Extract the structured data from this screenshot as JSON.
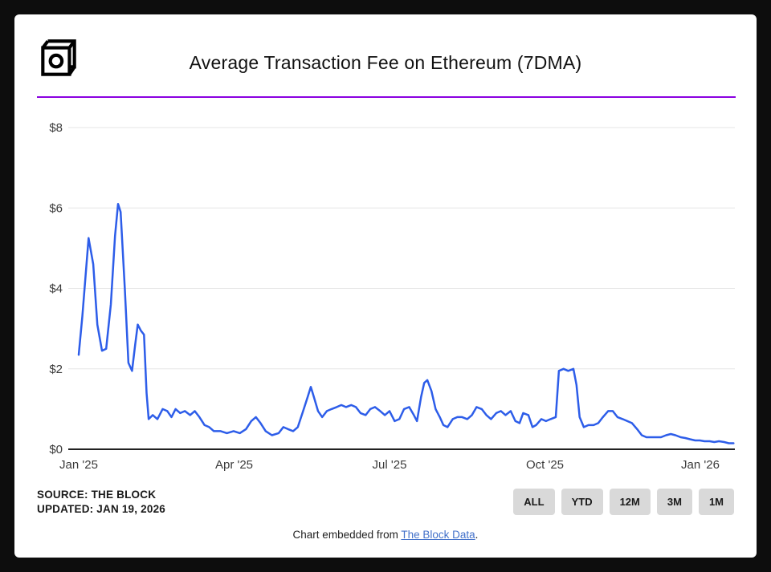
{
  "header": {
    "title": "Average Transaction Fee on Ethereum (7DMA)"
  },
  "colors": {
    "page_bg": "#0d0d0d",
    "card_bg": "#ffffff",
    "accent_divider": "#8a00e0",
    "line": "#2d5de9",
    "grid": "#e6e6e6",
    "axis": "#222222",
    "tick_text": "#3a3a3a",
    "button_bg": "#d9d9d9",
    "link": "#4472ca"
  },
  "chart_data": {
    "type": "line",
    "title": "Average Transaction Fee on Ethereum (7DMA)",
    "series_name": "Average transaction fee (USD, 7-day moving average)",
    "xlabel": "",
    "ylabel": "",
    "x_unit": "months since Jan 2025",
    "xlim": [
      0,
      12.67
    ],
    "ylim": [
      0,
      8
    ],
    "grid": true,
    "legend": false,
    "y_ticks": [
      {
        "label": "$0",
        "value": 0
      },
      {
        "label": "$2",
        "value": 2
      },
      {
        "label": "$4",
        "value": 4
      },
      {
        "label": "$6",
        "value": 6
      },
      {
        "label": "$8",
        "value": 8
      }
    ],
    "x_ticks": [
      {
        "label": "Jan '25",
        "value": 0
      },
      {
        "label": "Apr '25",
        "value": 3
      },
      {
        "label": "Jul '25",
        "value": 6
      },
      {
        "label": "Oct '25",
        "value": 9
      },
      {
        "label": "Jan '26",
        "value": 12
      }
    ],
    "points": [
      [
        0,
        2.35
      ],
      [
        0.07,
        3.3
      ],
      [
        0.19,
        5.25
      ],
      [
        0.28,
        4.6
      ],
      [
        0.36,
        3.1
      ],
      [
        0.45,
        2.45
      ],
      [
        0.53,
        2.5
      ],
      [
        0.62,
        3.6
      ],
      [
        0.7,
        5.3
      ],
      [
        0.76,
        6.1
      ],
      [
        0.81,
        5.9
      ],
      [
        0.89,
        4.0
      ],
      [
        0.96,
        2.15
      ],
      [
        1.03,
        1.95
      ],
      [
        1.09,
        2.6
      ],
      [
        1.14,
        3.1
      ],
      [
        1.2,
        2.95
      ],
      [
        1.26,
        2.85
      ],
      [
        1.31,
        1.4
      ],
      [
        1.35,
        0.75
      ],
      [
        1.43,
        0.85
      ],
      [
        1.52,
        0.75
      ],
      [
        1.62,
        1.0
      ],
      [
        1.71,
        0.95
      ],
      [
        1.79,
        0.8
      ],
      [
        1.87,
        1.0
      ],
      [
        1.96,
        0.9
      ],
      [
        2.05,
        0.95
      ],
      [
        2.15,
        0.85
      ],
      [
        2.24,
        0.95
      ],
      [
        2.33,
        0.8
      ],
      [
        2.43,
        0.6
      ],
      [
        2.52,
        0.55
      ],
      [
        2.61,
        0.45
      ],
      [
        2.74,
        0.45
      ],
      [
        2.86,
        0.4
      ],
      [
        2.99,
        0.45
      ],
      [
        3.11,
        0.4
      ],
      [
        3.23,
        0.5
      ],
      [
        3.33,
        0.7
      ],
      [
        3.42,
        0.8
      ],
      [
        3.51,
        0.65
      ],
      [
        3.61,
        0.45
      ],
      [
        3.73,
        0.35
      ],
      [
        3.86,
        0.4
      ],
      [
        3.95,
        0.55
      ],
      [
        4.04,
        0.5
      ],
      [
        4.14,
        0.45
      ],
      [
        4.23,
        0.55
      ],
      [
        4.32,
        0.9
      ],
      [
        4.42,
        1.3
      ],
      [
        4.48,
        1.55
      ],
      [
        4.54,
        1.3
      ],
      [
        4.62,
        0.95
      ],
      [
        4.7,
        0.8
      ],
      [
        4.79,
        0.95
      ],
      [
        4.88,
        1.0
      ],
      [
        4.98,
        1.05
      ],
      [
        5.07,
        1.1
      ],
      [
        5.16,
        1.05
      ],
      [
        5.26,
        1.1
      ],
      [
        5.35,
        1.05
      ],
      [
        5.44,
        0.9
      ],
      [
        5.54,
        0.85
      ],
      [
        5.63,
        1.0
      ],
      [
        5.72,
        1.05
      ],
      [
        5.82,
        0.95
      ],
      [
        5.91,
        0.85
      ],
      [
        6.0,
        0.95
      ],
      [
        6.1,
        0.7
      ],
      [
        6.19,
        0.75
      ],
      [
        6.28,
        1.0
      ],
      [
        6.38,
        1.05
      ],
      [
        6.47,
        0.85
      ],
      [
        6.53,
        0.7
      ],
      [
        6.61,
        1.3
      ],
      [
        6.67,
        1.65
      ],
      [
        6.73,
        1.72
      ],
      [
        6.81,
        1.45
      ],
      [
        6.89,
        1.0
      ],
      [
        6.97,
        0.8
      ],
      [
        7.04,
        0.6
      ],
      [
        7.12,
        0.55
      ],
      [
        7.22,
        0.75
      ],
      [
        7.31,
        0.8
      ],
      [
        7.4,
        0.8
      ],
      [
        7.5,
        0.75
      ],
      [
        7.59,
        0.85
      ],
      [
        7.68,
        1.05
      ],
      [
        7.78,
        1.0
      ],
      [
        7.87,
        0.85
      ],
      [
        7.96,
        0.75
      ],
      [
        8.06,
        0.9
      ],
      [
        8.15,
        0.95
      ],
      [
        8.24,
        0.85
      ],
      [
        8.34,
        0.95
      ],
      [
        8.43,
        0.7
      ],
      [
        8.51,
        0.65
      ],
      [
        8.58,
        0.9
      ],
      [
        8.68,
        0.85
      ],
      [
        8.76,
        0.55
      ],
      [
        8.83,
        0.6
      ],
      [
        8.93,
        0.75
      ],
      [
        9.02,
        0.7
      ],
      [
        9.11,
        0.75
      ],
      [
        9.21,
        0.8
      ],
      [
        9.27,
        1.95
      ],
      [
        9.36,
        2.0
      ],
      [
        9.45,
        1.95
      ],
      [
        9.55,
        2.0
      ],
      [
        9.61,
        1.6
      ],
      [
        9.67,
        0.8
      ],
      [
        9.75,
        0.55
      ],
      [
        9.84,
        0.6
      ],
      [
        9.94,
        0.6
      ],
      [
        10.03,
        0.65
      ],
      [
        10.12,
        0.8
      ],
      [
        10.22,
        0.95
      ],
      [
        10.31,
        0.95
      ],
      [
        10.4,
        0.8
      ],
      [
        10.5,
        0.75
      ],
      [
        10.59,
        0.7
      ],
      [
        10.68,
        0.65
      ],
      [
        10.78,
        0.5
      ],
      [
        10.87,
        0.35
      ],
      [
        10.96,
        0.3
      ],
      [
        11.06,
        0.3
      ],
      [
        11.15,
        0.3
      ],
      [
        11.24,
        0.3
      ],
      [
        11.34,
        0.35
      ],
      [
        11.43,
        0.38
      ],
      [
        11.52,
        0.35
      ],
      [
        11.62,
        0.3
      ],
      [
        11.71,
        0.28
      ],
      [
        11.8,
        0.25
      ],
      [
        11.9,
        0.22
      ],
      [
        11.99,
        0.22
      ],
      [
        12.08,
        0.2
      ],
      [
        12.18,
        0.2
      ],
      [
        12.27,
        0.18
      ],
      [
        12.36,
        0.2
      ],
      [
        12.46,
        0.18
      ],
      [
        12.55,
        0.15
      ],
      [
        12.64,
        0.15
      ]
    ]
  },
  "source": {
    "line1": "SOURCE: THE BLOCK",
    "line2": "UPDATED: JAN 19, 2026"
  },
  "range_buttons": [
    "ALL",
    "YTD",
    "12M",
    "3M",
    "1M"
  ],
  "footer": {
    "prefix": "Chart embedded from ",
    "link_text": "The Block Data",
    "suffix": "."
  }
}
